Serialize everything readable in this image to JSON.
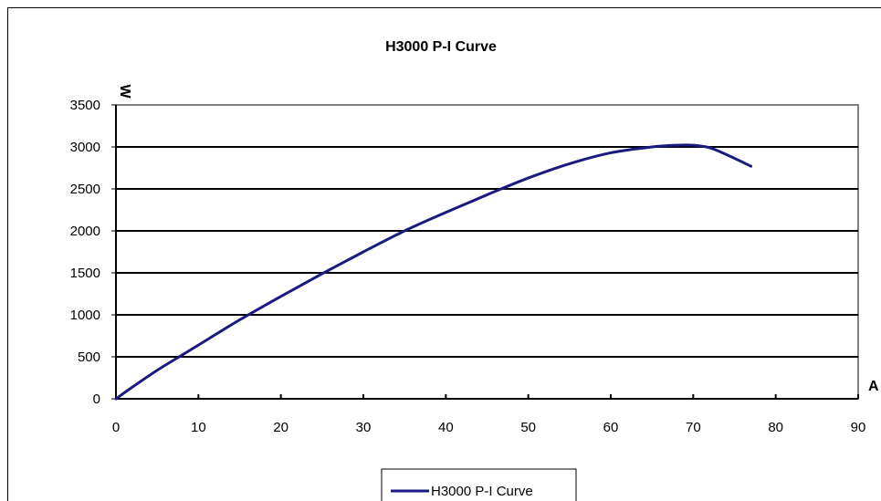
{
  "chart_data": {
    "type": "line",
    "title": "H3000 P-I Curve",
    "xlabel": "A",
    "ylabel": "W",
    "xlim": [
      0,
      90
    ],
    "ylim": [
      0,
      3500
    ],
    "xticks": [
      0,
      10,
      20,
      30,
      40,
      50,
      60,
      70,
      80,
      90
    ],
    "yticks": [
      0,
      500,
      1000,
      1500,
      2000,
      2500,
      3000,
      3500
    ],
    "grid": "horizontal",
    "legend": "bottom",
    "colors": {
      "series": "#1a1a80",
      "plot_border": "#808080",
      "gridline": "#000000"
    },
    "series": [
      {
        "name": "H3000  P-I Curve",
        "x": [
          0,
          2,
          5,
          8,
          10,
          15,
          20,
          25,
          30,
          35,
          40,
          45,
          50,
          55,
          60,
          65,
          68,
          70,
          72,
          74,
          77
        ],
        "y": [
          0,
          140,
          340,
          520,
          640,
          940,
          1220,
          1490,
          1750,
          2000,
          2220,
          2430,
          2630,
          2800,
          2930,
          3000,
          3020,
          3020,
          2990,
          2910,
          2770
        ]
      }
    ]
  }
}
